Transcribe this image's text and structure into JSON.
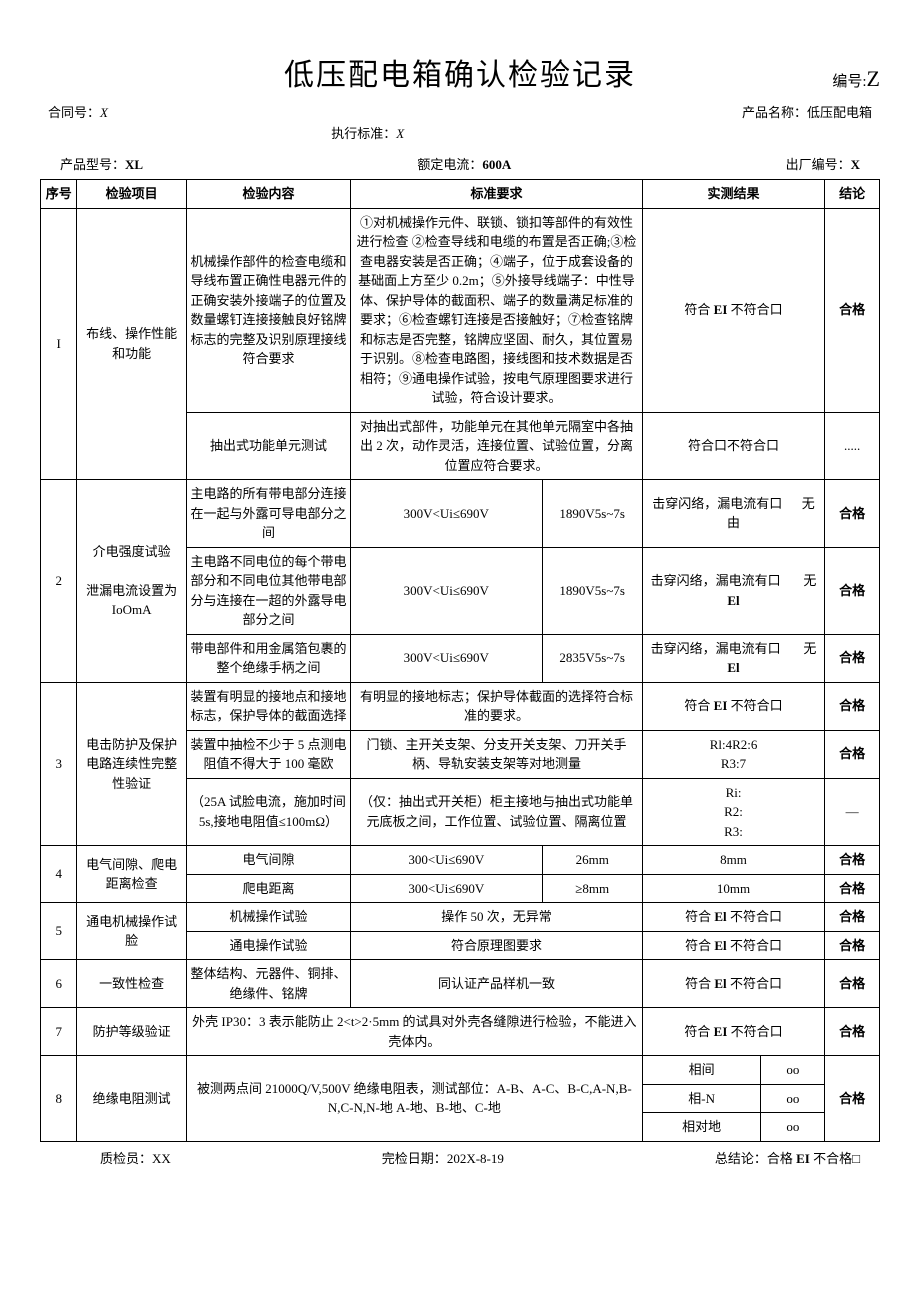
{
  "colors": {
    "text": "#000000",
    "bg": "#ffffff",
    "border": "#000000"
  },
  "title": "低压配电箱确认检验记录",
  "doc_code_label": "编号:",
  "doc_code_value": "Z",
  "header": {
    "contract_label": "合同号：",
    "contract_value": "X",
    "product_name_label": "产品名称：",
    "product_name_value": "低压配电箱",
    "standard_label": "执行标准：",
    "standard_value": "X"
  },
  "info": {
    "model_label": "产品型号：",
    "model_value": "XL",
    "current_label": "额定电流：",
    "current_value": "600A",
    "serial_label": "出厂编号：",
    "serial_value": "X"
  },
  "columns": {
    "seq": "序号",
    "item": "检验项目",
    "content": "检验内容",
    "requirement": "标准要求",
    "result": "实测结果",
    "conclusion": "结论"
  },
  "rows": {
    "r1": {
      "seq": "I",
      "item": "布线、操作性能和功能",
      "content_a": "机械操作部件的检查电缆和导线布置正确性电器元件的正确安装外接端子的位置及数量螺钉连接接触良好铭牌标志的完整及识别原理接线符合要求",
      "req_a": "①对机械操作元件、联锁、锁扣等部件的有效性进行检查 ②检查导线和电缆的布置是否正确;③检查电器安装是否正确；④端子，位于成套设备的基础面上方至少 0.2m；⑤外接导线端子：中性导体、保护导体的截面积、端子的数量满足标准的要求；⑥检查螺钉连接是否接触好；⑦检查铭牌和标志是否完整，铭牌应坚固、耐久，其位置易于识别。⑧检查电路图，接线图和技术数据是否相符；⑨通电操作试验，按电气原理图要求进行试验，符合设计要求。",
      "res_a": "符合 EI 不符合口",
      "conc_a": "合格",
      "content_b": "抽出式功能单元测试",
      "req_b": "对抽出式部件，功能单元在其他单元隔室中各抽出 2 次，动作灵活，连接位置、试验位置，分离位置应符合要求。",
      "res_b": "符合口不符合口",
      "conc_b": "....."
    },
    "r2": {
      "seq": "2",
      "item_line1": "介电强度试验",
      "item_line2": "泄漏电流设置为IoOmA",
      "content_a": "主电路的所有带电部分连接在一起与外露可导电部分之间",
      "req_a1": "300V<Ui≤690V",
      "req_a2": "1890V5s~7s",
      "res_a": "击穿闪络，漏电流有口      无由",
      "conc_a": "合格",
      "content_b": "主电路不同电位的每个带电部分和不同电位其他带电部分与连接在一超的外露导电部分之间",
      "req_b1": "300V<Ui≤690V",
      "req_b2": "1890V5s~7s",
      "res_b": "击穿闪络，漏电流有口       无 El",
      "conc_b": "合格",
      "content_c": "带电部件和用金属箔包裹的整个绝缘手柄之间",
      "req_c1": "300V<Ui≤690V",
      "req_c2": "2835V5s~7s",
      "res_c": "击穿闪络，漏电流有口       无 El",
      "conc_c": "合格"
    },
    "r3": {
      "seq": "3",
      "item": "电击防护及保护电路连续性完整性验证",
      "content_a": "装置有明显的接地点和接地标志，保护导体的截面选择",
      "req_a": "有明显的接地标志；保护导体截面的选择符合标准的要求。",
      "res_a": "符合 EI 不符合口",
      "conc_a": "合格",
      "content_b": "装置中抽检不少于 5 点测电阻值不得大于 100 毫欧",
      "req_b": "门锁、主开关支架、分支开关支架、刀开关手柄、导轨安装支架等对地测量",
      "res_b": "Rl:4R2:6\nR3:7",
      "conc_b": "合格",
      "content_c": "（25A 试脸电流，施加时间 5s,接地电阻值≤100mΩ）",
      "req_c": "（仅：抽出式开关柜）柜主接地与抽出式功能单元底板之间，工作位置、试验位置、隔离位置",
      "res_c": "Ri:\nR2:\nR3:",
      "conc_c": "—"
    },
    "r4": {
      "seq": "4",
      "item": "电气间隙、爬电距离检查",
      "content_a": "电气间隙",
      "req_a1": "300<Ui≤690V",
      "req_a2": "26mm",
      "res_a": "8mm",
      "conc_a": "合格",
      "content_b": "爬电距离",
      "req_b1": "300<Ui≤690V",
      "req_b2": "≥8mm",
      "res_b": "10mm",
      "conc_b": "合格"
    },
    "r5": {
      "seq": "5",
      "item": "通电机械操作试脸",
      "content_a": "机械操作试验",
      "req_a": "操作 50 次，无异常",
      "res_a": "符合 El 不符合口",
      "conc_a": "合格",
      "content_b": "通电操作试验",
      "req_b": "符合原理图要求",
      "res_b": "符合 El 不符合口",
      "conc_b": "合格"
    },
    "r6": {
      "seq": "6",
      "item": "一致性检查",
      "content": "整体结构、元器件、铜排、绝缘件、铭牌",
      "req": "同认证产品样机一致",
      "res": "符合 El 不符合口",
      "conc": "合格"
    },
    "r7": {
      "seq": "7",
      "item": "防护等级验证",
      "content": "外壳 IP30：3 表示能防止 2<t>2·5mm 的试具对外壳各缝隙进行检验，不能进入壳体内。",
      "res": "符合 EI 不符合口",
      "conc": "合格"
    },
    "r8": {
      "seq": "8",
      "item": "绝缘电阻测试",
      "content": "被测两点间 21000Q/V,500V 绝缘电阻表，测试部位：A-B、A-C、B-C,A-N,B-N,C-N,N-地 A-地、B-地、C-地",
      "res_a1": "相间",
      "res_a2": "oo",
      "res_b1": "相-N",
      "res_b2": "oo",
      "res_c1": "相对地",
      "res_c2": "oo",
      "conc": "合格"
    }
  },
  "footer": {
    "inspector_label": "质检员：",
    "inspector_value": "XX",
    "date_label": "完检日期：",
    "date_value": "202X-8-19",
    "conclusion_label": "总结论：",
    "conclusion_value": "合格 EI 不合格□"
  }
}
